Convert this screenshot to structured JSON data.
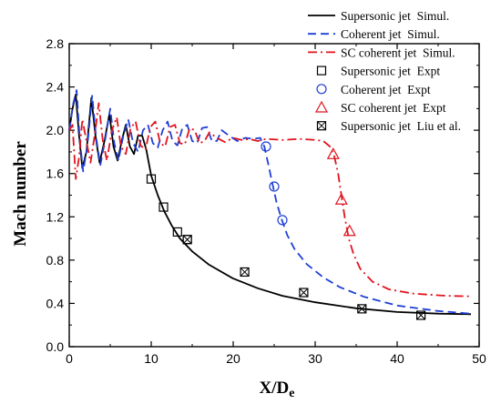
{
  "chart_data": {
    "type": "line",
    "xlabel": "X/D",
    "xlabel_sub": "e",
    "ylabel": "Mach number",
    "xlim": [
      0,
      50
    ],
    "ylim": [
      0.0,
      2.8
    ],
    "xticks": [
      "0",
      "10",
      "20",
      "30",
      "40",
      "50"
    ],
    "yticks": [
      "0.0",
      "0.4",
      "0.8",
      "1.2",
      "1.6",
      "2.0",
      "2.4",
      "2.8"
    ],
    "legend_position": "top-right",
    "series": [
      {
        "name": "Supersonic jet  Simul.",
        "kind": "line",
        "style": "solid",
        "color": "#000000",
        "points": [
          [
            0,
            2.0
          ],
          [
            0.4,
            2.2
          ],
          [
            0.8,
            2.33
          ],
          [
            1.2,
            1.95
          ],
          [
            1.6,
            1.65
          ],
          [
            2.1,
            1.8
          ],
          [
            2.7,
            2.3
          ],
          [
            3.2,
            1.95
          ],
          [
            3.7,
            1.7
          ],
          [
            4.3,
            1.9
          ],
          [
            4.9,
            2.15
          ],
          [
            5.4,
            1.85
          ],
          [
            5.9,
            1.72
          ],
          [
            6.4,
            1.9
          ],
          [
            6.9,
            2.05
          ],
          [
            7.4,
            1.85
          ],
          [
            7.9,
            1.78
          ],
          [
            8.4,
            1.95
          ],
          [
            8.9,
            1.95
          ],
          [
            9.4,
            1.82
          ],
          [
            10,
            1.58
          ],
          [
            10.8,
            1.4
          ],
          [
            11.6,
            1.25
          ],
          [
            12.5,
            1.12
          ],
          [
            13.5,
            1.0
          ],
          [
            15,
            0.88
          ],
          [
            17,
            0.76
          ],
          [
            20,
            0.63
          ],
          [
            23,
            0.54
          ],
          [
            26,
            0.47
          ],
          [
            30,
            0.41
          ],
          [
            35,
            0.355
          ],
          [
            40,
            0.32
          ],
          [
            45,
            0.305
          ],
          [
            49,
            0.3
          ]
        ]
      },
      {
        "name": "Coherent jet  Simul.",
        "kind": "line",
        "style": "dashed",
        "color": "#1f3fd6",
        "points": [
          [
            0,
            2.0
          ],
          [
            0.5,
            2.25
          ],
          [
            0.9,
            2.37
          ],
          [
            1.3,
            1.9
          ],
          [
            1.7,
            1.62
          ],
          [
            2.2,
            1.85
          ],
          [
            2.8,
            2.32
          ],
          [
            3.3,
            1.92
          ],
          [
            3.8,
            1.68
          ],
          [
            4.4,
            1.92
          ],
          [
            5.0,
            2.2
          ],
          [
            5.5,
            1.88
          ],
          [
            6.0,
            1.72
          ],
          [
            6.6,
            1.95
          ],
          [
            7.2,
            2.1
          ],
          [
            7.8,
            1.88
          ],
          [
            8.4,
            1.8
          ],
          [
            9.0,
            2.0
          ],
          [
            9.6,
            2.05
          ],
          [
            10.2,
            1.88
          ],
          [
            10.8,
            1.84
          ],
          [
            11.4,
            2.0
          ],
          [
            12.0,
            2.08
          ],
          [
            12.6,
            1.9
          ],
          [
            13.2,
            1.86
          ],
          [
            13.8,
            2.02
          ],
          [
            14.4,
            2.05
          ],
          [
            15.0,
            1.9
          ],
          [
            15.6,
            1.88
          ],
          [
            16.2,
            2.02
          ],
          [
            16.8,
            2.03
          ],
          [
            17.4,
            1.9
          ],
          [
            18.0,
            1.9
          ],
          [
            18.6,
            2.0
          ],
          [
            19.5,
            1.95
          ],
          [
            20.5,
            1.9
          ],
          [
            21.5,
            1.93
          ],
          [
            22.5,
            1.92
          ],
          [
            23.3,
            1.93
          ],
          [
            23.8,
            1.85
          ],
          [
            24.3,
            1.68
          ],
          [
            24.8,
            1.5
          ],
          [
            25.3,
            1.33
          ],
          [
            25.9,
            1.18
          ],
          [
            26.6,
            1.03
          ],
          [
            27.5,
            0.9
          ],
          [
            29,
            0.76
          ],
          [
            31,
            0.64
          ],
          [
            33,
            0.55
          ],
          [
            36,
            0.46
          ],
          [
            40,
            0.38
          ],
          [
            45,
            0.33
          ],
          [
            49,
            0.305
          ]
        ]
      },
      {
        "name": "SC coherent jet  Simul.",
        "kind": "line",
        "style": "dashdot",
        "color": "#e0141e",
        "points": [
          [
            0,
            2.0
          ],
          [
            0.4,
            2.05
          ],
          [
            0.8,
            1.55
          ],
          [
            1.2,
            1.75
          ],
          [
            1.6,
            2.1
          ],
          [
            2.1,
            1.9
          ],
          [
            2.6,
            1.7
          ],
          [
            3.1,
            1.95
          ],
          [
            3.6,
            2.25
          ],
          [
            4.1,
            1.9
          ],
          [
            4.6,
            1.72
          ],
          [
            5.2,
            2.0
          ],
          [
            5.8,
            2.12
          ],
          [
            6.3,
            1.85
          ],
          [
            6.9,
            1.78
          ],
          [
            7.5,
            2.02
          ],
          [
            8.1,
            2.08
          ],
          [
            8.7,
            1.86
          ],
          [
            9.3,
            1.82
          ],
          [
            9.9,
            2.03
          ],
          [
            10.5,
            2.08
          ],
          [
            11.1,
            1.88
          ],
          [
            11.7,
            1.85
          ],
          [
            12.3,
            2.03
          ],
          [
            12.9,
            2.05
          ],
          [
            13.5,
            1.88
          ],
          [
            14.1,
            1.87
          ],
          [
            14.7,
            2.02
          ],
          [
            15.3,
            2.0
          ],
          [
            15.9,
            1.88
          ],
          [
            16.5,
            1.9
          ],
          [
            17.1,
            1.98
          ],
          [
            18,
            1.93
          ],
          [
            19,
            1.89
          ],
          [
            20,
            1.93
          ],
          [
            21,
            1.91
          ],
          [
            22,
            1.92
          ],
          [
            23,
            1.9
          ],
          [
            24,
            1.92
          ],
          [
            26,
            1.91
          ],
          [
            28,
            1.92
          ],
          [
            30,
            1.91
          ],
          [
            31,
            1.9
          ],
          [
            31.8,
            1.85
          ],
          [
            32.3,
            1.77
          ],
          [
            32.8,
            1.6
          ],
          [
            33.2,
            1.4
          ],
          [
            33.6,
            1.2
          ],
          [
            34.1,
            1.0
          ],
          [
            34.7,
            0.85
          ],
          [
            35.5,
            0.72
          ],
          [
            37,
            0.6
          ],
          [
            39,
            0.53
          ],
          [
            42,
            0.49
          ],
          [
            46,
            0.47
          ],
          [
            49,
            0.465
          ]
        ]
      },
      {
        "name": "Supersonic jet  Expt",
        "kind": "marker",
        "marker": "square",
        "color": "#000000",
        "points": [
          [
            10.0,
            1.55
          ],
          [
            11.5,
            1.29
          ],
          [
            13.2,
            1.06
          ],
          [
            14.4,
            0.99
          ]
        ]
      },
      {
        "name": "Coherent jet  Expt",
        "kind": "marker",
        "marker": "circle",
        "color": "#1f3fd6",
        "points": [
          [
            24.0,
            1.85
          ],
          [
            25.0,
            1.48
          ],
          [
            26.0,
            1.17
          ]
        ]
      },
      {
        "name": "SC coherent jet  Expt",
        "kind": "marker",
        "marker": "triangle",
        "color": "#e0141e",
        "points": [
          [
            32.2,
            1.78
          ],
          [
            33.2,
            1.36
          ],
          [
            34.2,
            1.07
          ]
        ]
      },
      {
        "name": "Supersonic jet  Liu et al.",
        "kind": "marker",
        "marker": "boxed-x",
        "color": "#000000",
        "points": [
          [
            14.4,
            0.99
          ],
          [
            21.4,
            0.69
          ],
          [
            28.6,
            0.5
          ],
          [
            35.7,
            0.35
          ],
          [
            42.9,
            0.29
          ]
        ]
      }
    ]
  }
}
